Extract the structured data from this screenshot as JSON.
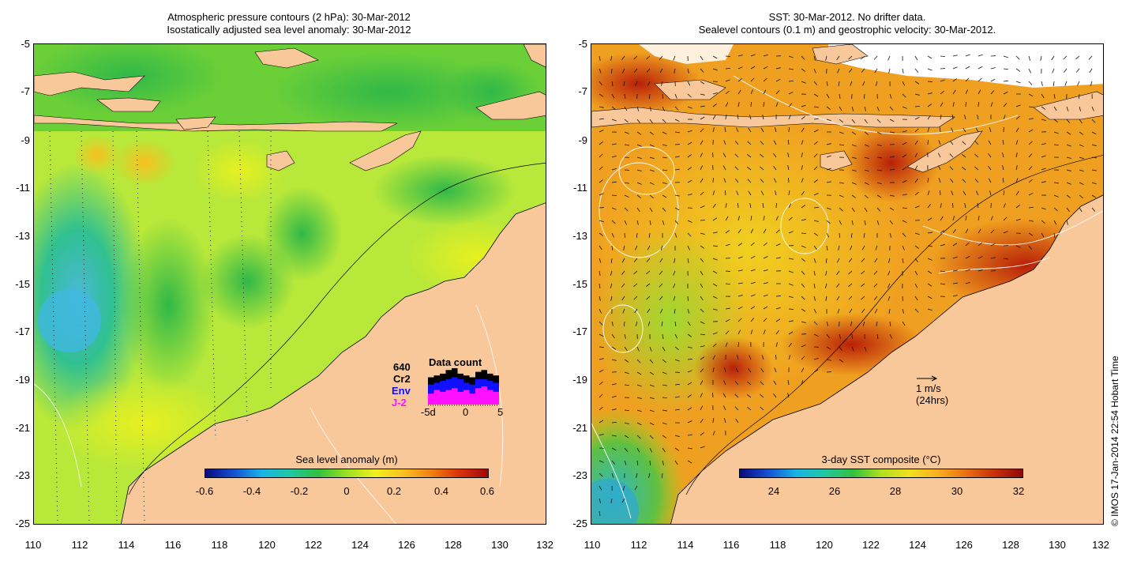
{
  "left_panel": {
    "title_line1": "Atmospheric pressure contours (2 hPa): 30-Mar-2012",
    "title_line2": "Isostatically adjusted sea level anomaly: 30-Mar-2012",
    "y_ticks": [
      "-5",
      "-7",
      "-9",
      "-11",
      "-13",
      "-15",
      "-17",
      "-19",
      "-21",
      "-23",
      "-25"
    ],
    "x_ticks": [
      "110",
      "112",
      "114",
      "116",
      "118",
      "120",
      "122",
      "124",
      "126",
      "128",
      "130",
      "132"
    ],
    "colorbar": {
      "title": "Sea level anomaly (m)",
      "ticks": [
        "-0.6",
        "-0.4",
        "-0.2",
        "0",
        "0.2",
        "0.4",
        "0.6"
      ],
      "stops": [
        "#0a0a80",
        "#1450d0",
        "#18b4e8",
        "#20c8a0",
        "#30c040",
        "#9ae020",
        "#f0f020",
        "#f8c020",
        "#f08010",
        "#d83008",
        "#a00808"
      ]
    },
    "data_count": {
      "title": "Data count",
      "count": "640",
      "missions": [
        {
          "name": "Cr2",
          "color": "#000000"
        },
        {
          "name": "Env",
          "color": "#1010ff"
        },
        {
          "name": "J-2",
          "color": "#ff10ff"
        }
      ],
      "axis_labels": [
        "-5d",
        "0",
        "5"
      ],
      "bars": [
        {
          "j2": 0.3,
          "env": 0.55,
          "cr2": 0.75
        },
        {
          "j2": 0.4,
          "env": 0.6,
          "cr2": 0.8
        },
        {
          "j2": 0.35,
          "env": 0.65,
          "cr2": 0.85
        },
        {
          "j2": 0.4,
          "env": 0.7,
          "cr2": 0.95
        },
        {
          "j2": 0.45,
          "env": 0.75,
          "cr2": 1.0
        },
        {
          "j2": 0.35,
          "env": 0.7,
          "cr2": 0.85
        },
        {
          "j2": 0.4,
          "env": 0.6,
          "cr2": 0.8
        },
        {
          "j2": 0.3,
          "env": 0.55,
          "cr2": 0.75
        },
        {
          "j2": 0.45,
          "env": 0.7,
          "cr2": 0.9
        },
        {
          "j2": 0.5,
          "env": 0.7,
          "cr2": 0.95
        },
        {
          "j2": 0.4,
          "env": 0.65,
          "cr2": 0.85
        },
        {
          "j2": 0.35,
          "env": 0.6,
          "cr2": 0.8
        }
      ]
    }
  },
  "right_panel": {
    "title_line1": "SST: 30-Mar-2012. No drifter data.",
    "title_line2": "Sealevel contours (0.1 m) and geostrophic velocity: 30-Mar-2012.",
    "y_ticks": [
      "-5",
      "-7",
      "-9",
      "-11",
      "-13",
      "-15",
      "-17",
      "-19",
      "-21",
      "-23",
      "-25"
    ],
    "x_ticks": [
      "110",
      "112",
      "114",
      "116",
      "118",
      "120",
      "122",
      "124",
      "126",
      "128",
      "130",
      "132"
    ],
    "colorbar": {
      "title": "3-day SST composite (°C)",
      "ticks": [
        "24",
        "26",
        "28",
        "30",
        "32"
      ],
      "stops": [
        "#0a0a80",
        "#1450d0",
        "#18b4e8",
        "#20c8a0",
        "#30c040",
        "#b0e020",
        "#f0e020",
        "#f8b020",
        "#e87010",
        "#c83008",
        "#900808"
      ]
    },
    "velocity_key": {
      "label": "1 m/s",
      "sublabel": "(24hrs)"
    }
  },
  "credit": "© IMOS 17-Jan-2014 22:54 Hobart Time",
  "colors": {
    "land": "#f8c89a",
    "ocean_left": "#b8e83a",
    "ocean_right": "#f0a020"
  }
}
